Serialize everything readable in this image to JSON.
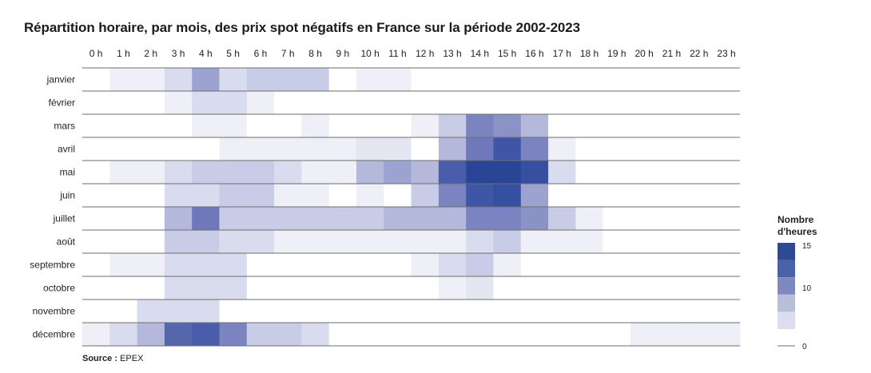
{
  "title": "Répartition horaire, par mois, des prix spot négatifs en France sur la période 2002-2023",
  "source_label": "Source :",
  "source_value": "EPEX",
  "legend": {
    "title_line1": "Nombre",
    "title_line2": "d'heures",
    "ticks": [
      "15",
      "10",
      "0"
    ],
    "scale": [
      {
        "value": 15,
        "color": "#2c4a96"
      },
      {
        "value": 12,
        "color": "#4a63a8"
      },
      {
        "value": 9,
        "color": "#7e89c2"
      },
      {
        "value": 6,
        "color": "#b9bedd"
      },
      {
        "value": 3,
        "color": "#dcdeef"
      }
    ]
  },
  "colors": {
    "c0": "#ffffff",
    "c1": "#eeeff7",
    "c2": "#e4e6f2",
    "c3": "#d9dbee",
    "c4": "#c9cce6",
    "c5": "#b4b8db",
    "c6": "#9da3d0",
    "c7": "#8b92c6",
    "c8": "#7b84c0",
    "c9": "#6f78ba",
    "c10": "#5566aa",
    "c11": "#4a5daa",
    "c12": "#3f56a6",
    "c13": "#3650a1",
    "c14": "#2f4a9c",
    "c15": "#2a4596",
    "rule": "#6e6e6e"
  },
  "chart_data": {
    "type": "heatmap",
    "title": "Répartition horaire, par mois, des prix spot négatifs en France sur la période 2002-2023",
    "x_categories": [
      "0 h",
      "1 h",
      "2 h",
      "3 h",
      "4 h",
      "5 h",
      "6 h",
      "7 h",
      "8 h",
      "9 h",
      "10 h",
      "11 h",
      "12 h",
      "13 h",
      "14 h",
      "15 h",
      "16 h",
      "17 h",
      "18 h",
      "19 h",
      "20 h",
      "21 h",
      "22 h",
      "23 h"
    ],
    "y_categories": [
      "janvier",
      "février",
      "mars",
      "avril",
      "mai",
      "juin",
      "juillet",
      "août",
      "septembre",
      "octobre",
      "novembre",
      "décembre"
    ],
    "color_scale_label": "Nombre d'heures",
    "color_range": [
      0,
      15
    ],
    "values": [
      [
        0,
        1,
        1,
        3,
        6,
        3,
        4,
        4,
        4,
        0,
        1,
        1,
        0,
        0,
        0,
        0,
        0,
        0,
        0,
        0,
        0,
        0,
        0,
        0
      ],
      [
        0,
        0,
        0,
        1,
        3,
        3,
        1,
        0,
        0,
        0,
        0,
        0,
        0,
        0,
        0,
        0,
        0,
        0,
        0,
        0,
        0,
        0,
        0,
        0
      ],
      [
        0,
        0,
        0,
        0,
        1,
        1,
        0,
        0,
        1,
        0,
        0,
        0,
        1,
        4,
        8,
        7,
        5,
        0,
        0,
        0,
        0,
        0,
        0,
        0
      ],
      [
        0,
        0,
        0,
        0,
        0,
        1,
        1,
        1,
        1,
        1,
        2,
        2,
        0,
        5,
        9,
        12,
        8,
        1,
        0,
        0,
        0,
        0,
        0,
        0
      ],
      [
        0,
        1,
        1,
        3,
        4,
        4,
        4,
        3,
        1,
        1,
        5,
        6,
        5,
        11,
        15,
        15,
        13,
        3,
        0,
        0,
        0,
        0,
        0,
        0
      ],
      [
        0,
        0,
        0,
        3,
        3,
        4,
        4,
        1,
        1,
        0,
        1,
        0,
        4,
        8,
        12,
        13,
        6,
        0,
        0,
        0,
        0,
        0,
        0,
        0
      ],
      [
        0,
        0,
        0,
        5,
        9,
        4,
        4,
        4,
        4,
        4,
        4,
        5,
        5,
        5,
        8,
        8,
        7,
        4,
        1,
        0,
        0,
        0,
        0,
        0
      ],
      [
        0,
        0,
        0,
        4,
        4,
        3,
        3,
        1,
        1,
        1,
        1,
        1,
        1,
        1,
        3,
        4,
        1,
        1,
        1,
        0,
        0,
        0,
        0,
        0
      ],
      [
        0,
        1,
        1,
        3,
        3,
        3,
        0,
        0,
        0,
        0,
        0,
        0,
        1,
        3,
        4,
        1,
        0,
        0,
        0,
        0,
        0,
        0,
        0,
        0
      ],
      [
        0,
        0,
        0,
        3,
        3,
        3,
        0,
        0,
        0,
        0,
        0,
        0,
        0,
        1,
        2,
        0,
        0,
        0,
        0,
        0,
        0,
        0,
        0,
        0
      ],
      [
        0,
        0,
        3,
        3,
        3,
        0,
        0,
        0,
        0,
        0,
        0,
        0,
        0,
        0,
        0,
        0,
        0,
        0,
        0,
        0,
        0,
        0,
        0,
        0
      ],
      [
        1,
        3,
        5,
        10,
        11,
        8,
        4,
        4,
        3,
        0,
        0,
        0,
        0,
        0,
        0,
        0,
        0,
        0,
        0,
        0,
        1,
        1,
        1,
        1
      ]
    ]
  }
}
